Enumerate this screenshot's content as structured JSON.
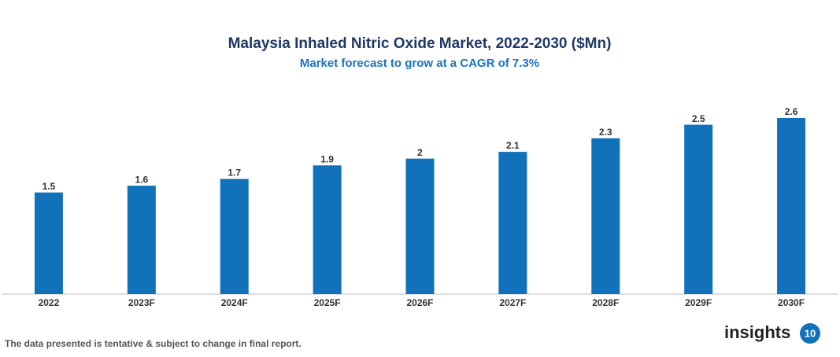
{
  "chart_data": {
    "type": "bar",
    "title": "Malaysia Inhaled Nitric Oxide Market, 2022-2030 ($Mn)",
    "subtitle": "Market forecast to grow at a CAGR of 7.3%",
    "categories": [
      "2022",
      "2023F",
      "2024F",
      "2025F",
      "2026F",
      "2027F",
      "2028F",
      "2029F",
      "2030F"
    ],
    "values": [
      1.5,
      1.6,
      1.7,
      1.9,
      2,
      2.1,
      2.3,
      2.5,
      2.6
    ],
    "color": "#1172bb"
  },
  "footnote": "The data presented is tentative & subject to change in final report.",
  "logo": {
    "text": "insights",
    "badge": "10"
  }
}
